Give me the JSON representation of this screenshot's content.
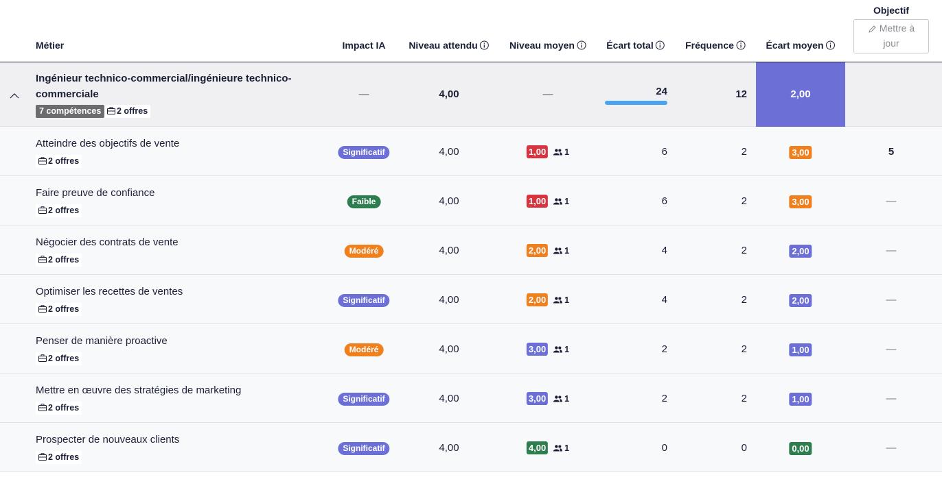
{
  "header": {
    "metier": "Métier",
    "impact_ia": "Impact IA",
    "niveau_attendu": "Niveau attendu",
    "niveau_moyen": "Niveau moyen",
    "ecart_total": "Écart total",
    "frequence": "Fréquence",
    "ecart_moyen": "Écart moyen",
    "objectif": "Objectif",
    "update_button": "Mettre à jour"
  },
  "group": {
    "name": "Ingénieur technico-commercial/ingénieure technico-commerciale",
    "competences": "7 compétences",
    "offres": "2 offres",
    "impact": "—",
    "niveau_attendu": "4,00",
    "niveau_moyen": "—",
    "ecart_total": "24",
    "frequence": "12",
    "ecart_moyen": "2,00"
  },
  "rows": [
    {
      "name": "Atteindre des objectifs de vente",
      "offres": "2 offres",
      "impact": "Significatif",
      "impact_color": "#6b6fd6",
      "niveau_attendu": "4,00",
      "niveau_moyen": "1,00",
      "niveau_moyen_color": "#d7343f",
      "personnes": "1",
      "ecart_total": "6",
      "frequence": "2",
      "ecart_moyen": "3,00",
      "ecart_moyen_color": "#f07f1e",
      "objectif": "5"
    },
    {
      "name": "Faire preuve de confiance",
      "offres": "2 offres",
      "impact": "Faible",
      "impact_color": "#2e7d4f",
      "niveau_attendu": "4,00",
      "niveau_moyen": "1,00",
      "niveau_moyen_color": "#d7343f",
      "personnes": "1",
      "ecart_total": "6",
      "frequence": "2",
      "ecart_moyen": "3,00",
      "ecart_moyen_color": "#f07f1e",
      "objectif": "—"
    },
    {
      "name": "Négocier des contrats de vente",
      "offres": "2 offres",
      "impact": "Modéré",
      "impact_color": "#f07f1e",
      "niveau_attendu": "4,00",
      "niveau_moyen": "2,00",
      "niveau_moyen_color": "#f07f1e",
      "personnes": "1",
      "ecart_total": "4",
      "frequence": "2",
      "ecart_moyen": "2,00",
      "ecart_moyen_color": "#6b6fd6",
      "objectif": "—"
    },
    {
      "name": "Optimiser les recettes de ventes",
      "offres": "2 offres",
      "impact": "Significatif",
      "impact_color": "#6b6fd6",
      "niveau_attendu": "4,00",
      "niveau_moyen": "2,00",
      "niveau_moyen_color": "#f07f1e",
      "personnes": "1",
      "ecart_total": "4",
      "frequence": "2",
      "ecart_moyen": "2,00",
      "ecart_moyen_color": "#6b6fd6",
      "objectif": "—"
    },
    {
      "name": "Penser de manière proactive",
      "offres": "2 offres",
      "impact": "Modéré",
      "impact_color": "#f07f1e",
      "niveau_attendu": "4,00",
      "niveau_moyen": "3,00",
      "niveau_moyen_color": "#6b6fd6",
      "personnes": "1",
      "ecart_total": "2",
      "frequence": "2",
      "ecart_moyen": "1,00",
      "ecart_moyen_color": "#6b6fd6",
      "objectif": "—"
    },
    {
      "name": "Mettre en œuvre des stratégies de marketing",
      "offres": "2 offres",
      "impact": "Significatif",
      "impact_color": "#6b6fd6",
      "niveau_attendu": "4,00",
      "niveau_moyen": "3,00",
      "niveau_moyen_color": "#6b6fd6",
      "personnes": "1",
      "ecart_total": "2",
      "frequence": "2",
      "ecart_moyen": "1,00",
      "ecart_moyen_color": "#6b6fd6",
      "objectif": "—"
    },
    {
      "name": "Prospecter de nouveaux clients",
      "offres": "2 offres",
      "impact": "Significatif",
      "impact_color": "#6b6fd6",
      "niveau_attendu": "4,00",
      "niveau_moyen": "4,00",
      "niveau_moyen_color": "#2e7d4f",
      "personnes": "1",
      "ecart_total": "0",
      "frequence": "0",
      "ecart_moyen": "0,00",
      "ecart_moyen_color": "#2e7d4f",
      "objectif": "—"
    }
  ]
}
